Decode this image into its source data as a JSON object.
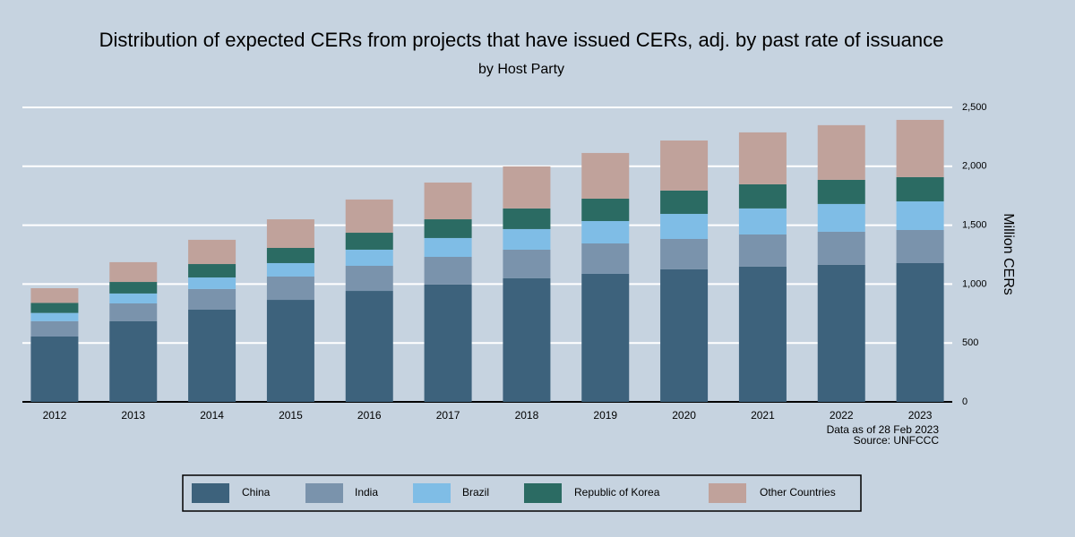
{
  "chart_data": {
    "type": "stacked_bar",
    "title": "Distribution of expected CERs from projects that have issued CERs, adj. by past rate of issuance",
    "subtitle": "by Host Party",
    "y_label": "Million CERs",
    "notes": [
      "Data as of 28 Feb 2023",
      "Source: UNFCCC"
    ],
    "categories": [
      "2012",
      "2013",
      "2014",
      "2015",
      "2016",
      "2017",
      "2018",
      "2019",
      "2020",
      "2021",
      "2022",
      "2023"
    ],
    "series": [
      {
        "name": "China",
        "color": "#3d627c",
        "values": [
          555,
          684,
          783,
          866,
          942,
          996,
          1049,
          1087,
          1125,
          1148,
          1163,
          1178
        ]
      },
      {
        "name": "India",
        "color": "#7a93ac",
        "values": [
          130,
          152,
          175,
          198,
          213,
          235,
          243,
          258,
          258,
          273,
          281,
          281
        ]
      },
      {
        "name": "Brazil",
        "color": "#7fbde6",
        "values": [
          70,
          84,
          98,
          114,
          137,
          160,
          175,
          190,
          213,
          221,
          236,
          243
        ]
      },
      {
        "name": "Republic of Korea",
        "color": "#2b6b63",
        "values": [
          85,
          98,
          114,
          129,
          144,
          159,
          175,
          190,
          198,
          205,
          205,
          206
        ]
      },
      {
        "name": "Other Countries",
        "color": "#c0a29b",
        "values": [
          125,
          168,
          206,
          243,
          282,
          312,
          357,
          388,
          425,
          441,
          464,
          486
        ]
      }
    ],
    "ylim": [
      0,
      2500
    ],
    "yticks": [
      0,
      500,
      {
        "value": 1000,
        "label": "1,000"
      },
      {
        "value": 1500,
        "label": "1,500"
      },
      {
        "value": 2000,
        "label": "2,000"
      },
      {
        "value": 2500,
        "label": "2,500"
      }
    ],
    "grid": true,
    "grid_color": "#ffffff",
    "legend": "bottom"
  }
}
